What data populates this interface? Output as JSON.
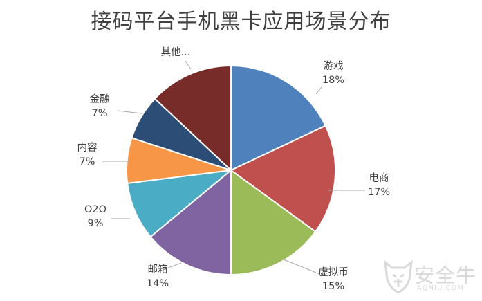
{
  "chart_data": {
    "type": "pie",
    "title": "接码平台手机黑卡应用场景分布",
    "slices": [
      {
        "label": "游戏",
        "value": 18,
        "value_label": "18%",
        "color": "#4f81bd"
      },
      {
        "label": "电商",
        "value": 17,
        "value_label": "17%",
        "color": "#c0504d"
      },
      {
        "label": "虚拟币",
        "value": 15,
        "value_label": "15%",
        "color": "#9bbb59"
      },
      {
        "label": "邮箱",
        "value": 14,
        "value_label": "14%",
        "color": "#8064a2"
      },
      {
        "label": "O2O",
        "value": 9,
        "value_label": "9%",
        "color": "#4bacc6"
      },
      {
        "label": "内容",
        "value": 7,
        "value_label": "7%",
        "color": "#f79646"
      },
      {
        "label": "金融",
        "value": 7,
        "value_label": "7%",
        "color": "#2c4d75"
      },
      {
        "label": "其他...",
        "value": 13,
        "value_label": "",
        "color": "#772c2a"
      }
    ],
    "legend": "none"
  },
  "watermark": {
    "text": "安全牛",
    "subtext": "AQNIU.COM"
  }
}
